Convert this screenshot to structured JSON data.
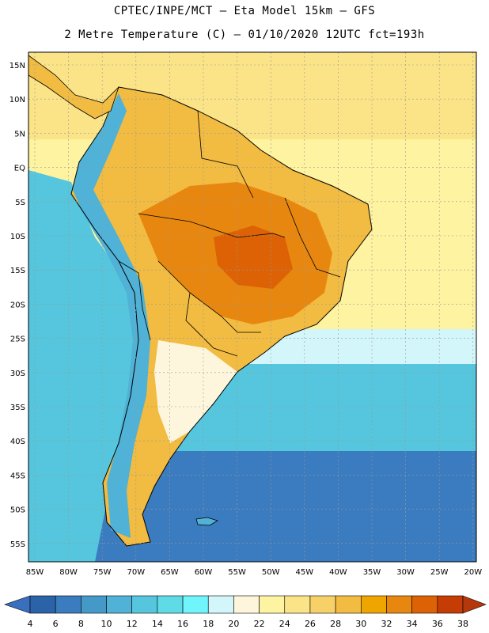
{
  "title_line1": "CPTEC/INPE/MCT –  Eta Model 15km – GFS",
  "title_line2": "2 Metre Temperature (C) – 01/10/2020 12UTC fct=193h",
  "lat_labels": [
    "15N",
    "10N",
    "5N",
    "EQ",
    "5S",
    "10S",
    "15S",
    "20S",
    "25S",
    "30S",
    "35S",
    "40S",
    "45S",
    "50S",
    "55S"
  ],
  "lon_labels": [
    "85W",
    "80W",
    "75W",
    "70W",
    "65W",
    "60W",
    "55W",
    "50W",
    "45W",
    "40W",
    "35W",
    "30W",
    "25W",
    "20W"
  ],
  "colorbar": {
    "labels": [
      "4",
      "6",
      "8",
      "10",
      "12",
      "14",
      "16",
      "18",
      "20",
      "22",
      "24",
      "26",
      "28",
      "30",
      "32",
      "34",
      "36",
      "38"
    ],
    "colors": [
      "#2b63a8",
      "#3a7cbf",
      "#4599c9",
      "#4fb2d6",
      "#55c6de",
      "#5edbe6",
      "#6ff5fb",
      "#d3f6fb",
      "#fdf6dd",
      "#fdf3a0",
      "#fbe487",
      "#f7d068",
      "#f2bb41",
      "#efa500",
      "#e8870f",
      "#dc6205",
      "#c53d04"
    ],
    "low_arrow_color": "#3a6fc0",
    "high_arrow_color": "#b5380d"
  },
  "ocean_colors": {
    "north_atlantic": "#fbe487",
    "equatorial": "#fdf3a0",
    "south_pacific": "#55c6de",
    "mid_south": "#3a7cbf",
    "deep_south": "#2b63a8"
  },
  "land_colors": {
    "warm": "#f2bb41",
    "hot": "#e8870f",
    "hottest": "#dc6205",
    "cool": "#fdf6dd",
    "andes": "#4fb2d6"
  }
}
